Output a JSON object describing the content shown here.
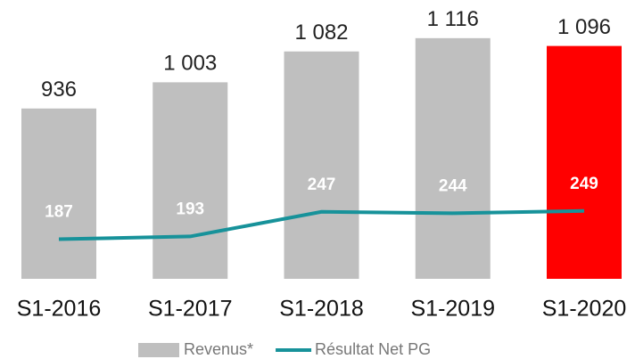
{
  "chart_data": {
    "type": "bar-line",
    "categories": [
      "S1-2016",
      "S1-2017",
      "S1-2018",
      "S1-2019",
      "S1-2020"
    ],
    "series": [
      {
        "name": "Revenus*",
        "type": "bar",
        "colors": [
          "#bfbfbf",
          "#bfbfbf",
          "#bfbfbf",
          "#bfbfbf",
          "#ff0000"
        ],
        "color": "#bfbfbf",
        "values": [
          936,
          1003,
          1082,
          1116,
          1096
        ],
        "value_labels": [
          "936",
          "1 003",
          "1 082",
          "1 116",
          "1 096"
        ]
      },
      {
        "name": "Résultat Net PG",
        "type": "line",
        "axis": "y2",
        "color": "#17929a",
        "values": [
          187,
          193,
          247,
          244,
          249
        ]
      }
    ],
    "ylim": [
      500,
      1200
    ],
    "y2lim": [
      100,
      700
    ],
    "legend": "bottom"
  }
}
